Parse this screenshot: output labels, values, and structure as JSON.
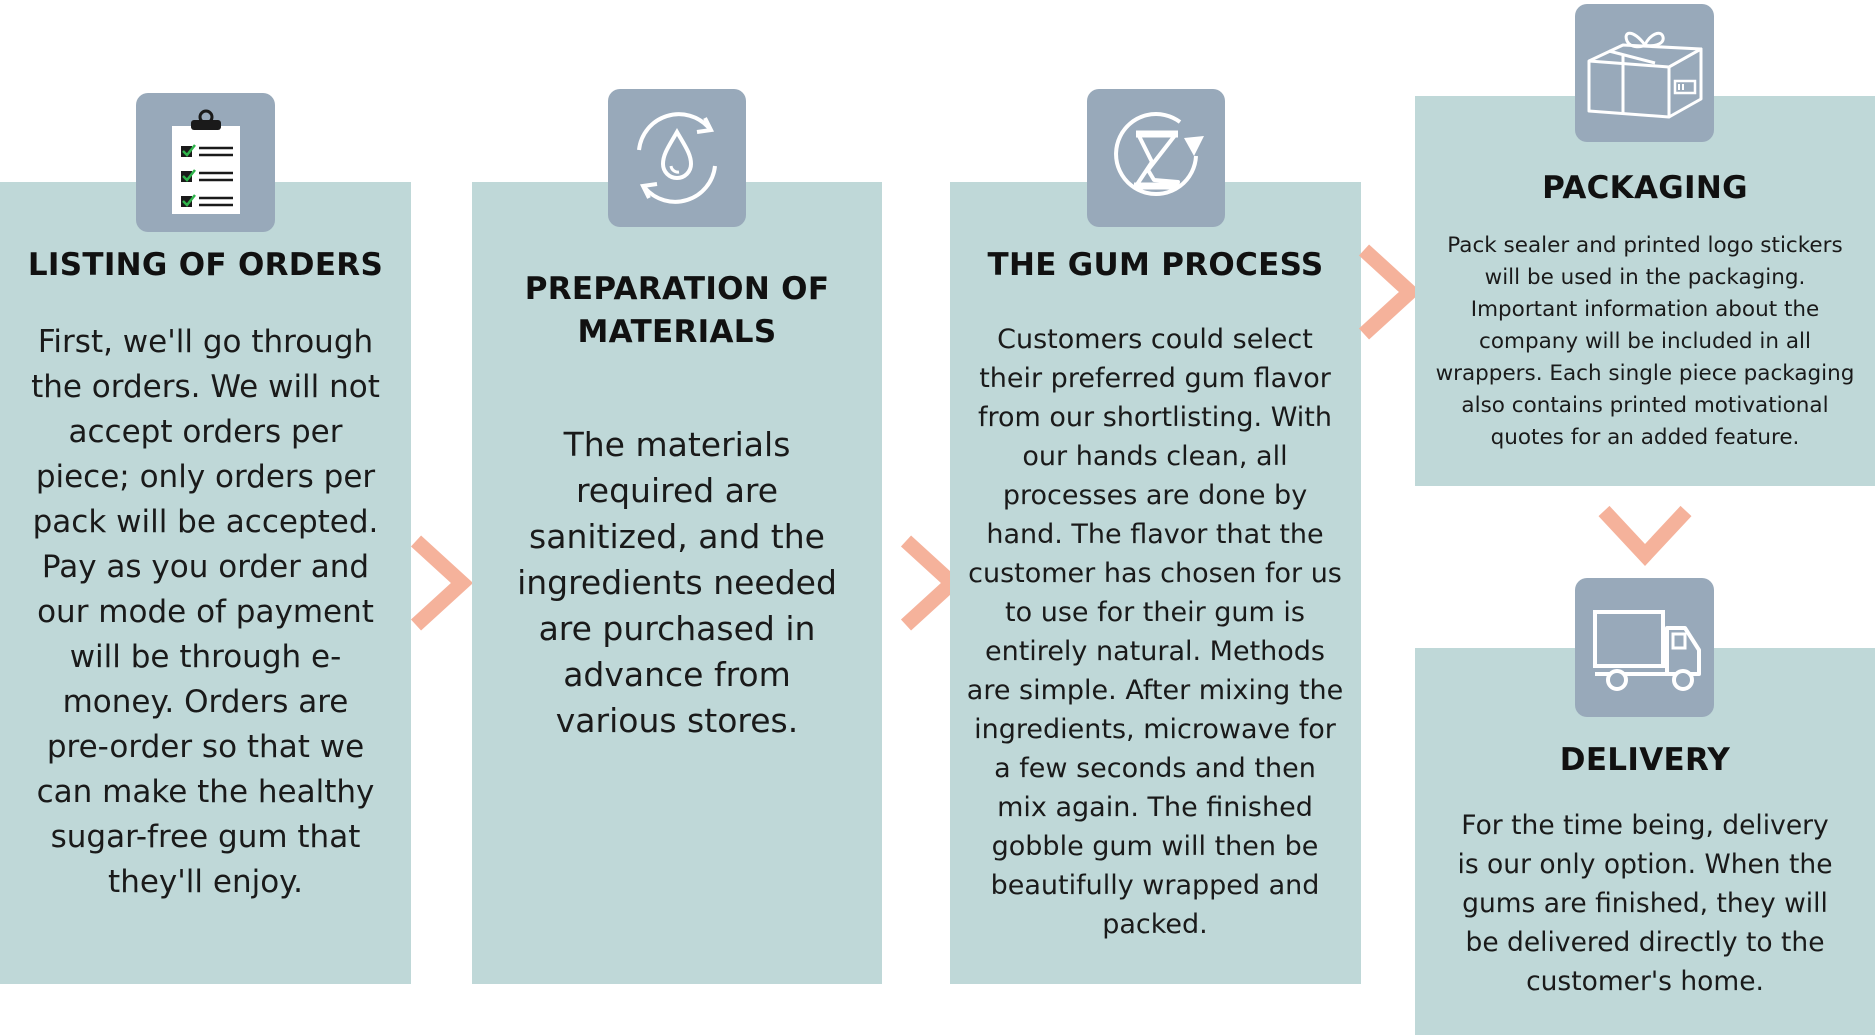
{
  "steps": [
    {
      "title": "LISTING OF ORDERS",
      "text": "First, we'll go through the orders. We will not accept orders per piece; only orders per pack will be accepted. Pay as you order and our mode of payment will be through e-money. Orders are pre-order so that we can make the healthy sugar-free gum that they'll enjoy.",
      "icon": "clipboard-checklist-icon"
    },
    {
      "title_line1": "PREPARATION OF",
      "title_line2": "MATERIALS",
      "text": "The materials required are sanitized, and the ingredients needed are purchased in advance from various stores.",
      "icon": "water-drop-cycle-icon"
    },
    {
      "title": "THE GUM PROCESS",
      "text": "Customers could select their preferred gum flavor from our shortlisting. With our hands clean, all processes are done by hand. The flavor that the customer has chosen for us to use for their gum is entirely natural. Methods are simple. After mixing the ingredients, microwave for a few seconds and then mix again. The finished gobble gum will then be beautifully wrapped and packed.",
      "icon": "hourglass-cycle-icon"
    },
    {
      "title": "PACKAGING",
      "text": "Pack sealer and printed logo stickers will be used in the packaging. Important information about the company will be included in all wrappers. Each single piece packaging also contains printed motivational quotes for an added feature.",
      "icon": "gift-package-icon"
    },
    {
      "title": "DELIVERY",
      "text": "For the time being, delivery is our only option. When the gums are finished, they will be delivered directly to the customer's home.",
      "icon": "delivery-truck-icon"
    }
  ],
  "colors": {
    "card": "#bfd8d8",
    "badge": "#98a9ba",
    "arrow": "#f5b29b"
  }
}
